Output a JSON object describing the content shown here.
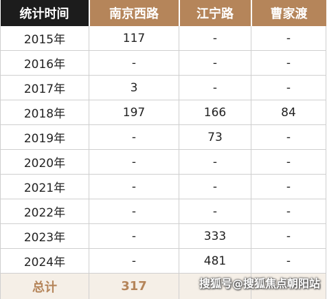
{
  "table": {
    "headers": [
      "统计时间",
      "南京西路",
      "江宁路",
      "曹家渡"
    ],
    "rows": [
      [
        "2015年",
        "117",
        "-",
        "-"
      ],
      [
        "2016年",
        "-",
        "-",
        "-"
      ],
      [
        "2017年",
        "3",
        "-",
        "-"
      ],
      [
        "2018年",
        "197",
        "166",
        "84"
      ],
      [
        "2019年",
        "-",
        "73",
        "-"
      ],
      [
        "2020年",
        "-",
        "-",
        "-"
      ],
      [
        "2021年",
        "-",
        "-",
        "-"
      ],
      [
        "2022年",
        "-",
        "-",
        "-"
      ],
      [
        "2023年",
        "-",
        "333",
        "-"
      ],
      [
        "2024年",
        "-",
        "481",
        "-"
      ]
    ],
    "total": [
      "总计",
      "317",
      "",
      ""
    ]
  },
  "watermark": "搜狐号@搜狐焦点朝阳站",
  "colors": {
    "header_dark": "#1c1c1c",
    "header_accent": "#b5855a",
    "total_bg": "#f5efe7"
  }
}
